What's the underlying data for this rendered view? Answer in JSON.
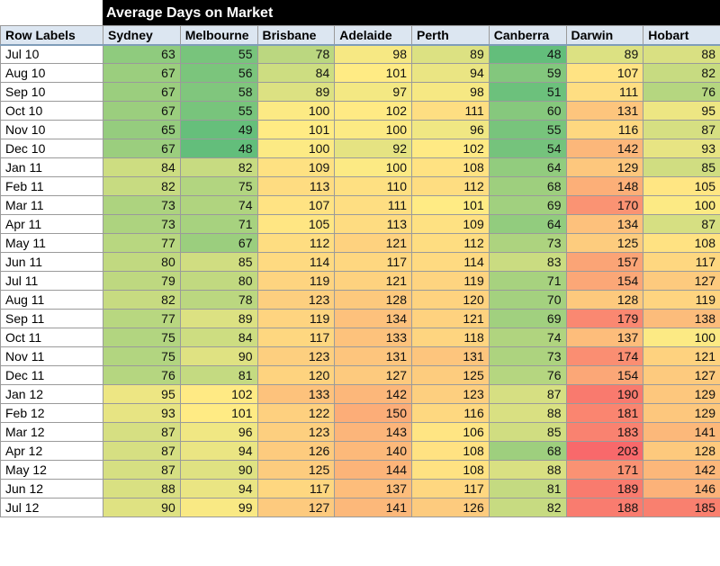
{
  "chart_data": {
    "type": "heatmap",
    "title": "Average Days on Market",
    "corner_label": "Row Labels",
    "columns": [
      "Sydney",
      "Melbourne",
      "Brisbane",
      "Adelaide",
      "Perth",
      "Canberra",
      "Darwin",
      "Hobart"
    ],
    "rows": [
      "Jul 10",
      "Aug 10",
      "Sep 10",
      "Oct 10",
      "Nov 10",
      "Dec 10",
      "Jan 11",
      "Feb 11",
      "Mar 11",
      "Apr 11",
      "May 11",
      "Jun 11",
      "Jul 11",
      "Aug 11",
      "Sep 11",
      "Oct 11",
      "Nov 11",
      "Dec 11",
      "Jan 12",
      "Feb 12",
      "Mar 12",
      "Apr 12",
      "May 12",
      "Jun 12",
      "Jul 12"
    ],
    "values": [
      [
        63,
        55,
        78,
        98,
        89,
        48,
        89,
        88
      ],
      [
        67,
        56,
        84,
        101,
        94,
        59,
        107,
        82
      ],
      [
        67,
        58,
        89,
        97,
        98,
        51,
        111,
        76
      ],
      [
        67,
        55,
        100,
        102,
        111,
        60,
        131,
        95
      ],
      [
        65,
        49,
        101,
        100,
        96,
        55,
        116,
        87
      ],
      [
        67,
        48,
        100,
        92,
        102,
        54,
        142,
        93
      ],
      [
        84,
        82,
        109,
        100,
        108,
        64,
        129,
        85
      ],
      [
        82,
        75,
        113,
        110,
        112,
        68,
        148,
        105
      ],
      [
        73,
        74,
        107,
        111,
        101,
        69,
        170,
        100
      ],
      [
        73,
        71,
        105,
        113,
        109,
        64,
        134,
        87
      ],
      [
        77,
        67,
        112,
        121,
        112,
        73,
        125,
        108
      ],
      [
        80,
        85,
        114,
        117,
        114,
        83,
        157,
        117
      ],
      [
        79,
        80,
        119,
        121,
        119,
        71,
        154,
        127
      ],
      [
        82,
        78,
        123,
        128,
        120,
        70,
        128,
        119
      ],
      [
        77,
        89,
        119,
        134,
        121,
        69,
        179,
        138
      ],
      [
        75,
        84,
        117,
        133,
        118,
        74,
        137,
        100
      ],
      [
        75,
        90,
        123,
        131,
        131,
        73,
        174,
        121
      ],
      [
        76,
        81,
        120,
        127,
        125,
        76,
        154,
        127
      ],
      [
        95,
        102,
        133,
        142,
        123,
        87,
        190,
        129
      ],
      [
        93,
        101,
        122,
        150,
        116,
        88,
        181,
        129
      ],
      [
        87,
        96,
        123,
        143,
        106,
        85,
        183,
        141
      ],
      [
        87,
        94,
        126,
        140,
        108,
        68,
        203,
        128
      ],
      [
        87,
        90,
        125,
        144,
        108,
        88,
        171,
        142
      ],
      [
        88,
        94,
        117,
        137,
        117,
        81,
        189,
        146
      ],
      [
        90,
        99,
        127,
        141,
        126,
        82,
        188,
        185
      ]
    ],
    "color_scale": {
      "low": "#63be7b",
      "mid": "#ffeb84",
      "high": "#f8696b"
    }
  }
}
